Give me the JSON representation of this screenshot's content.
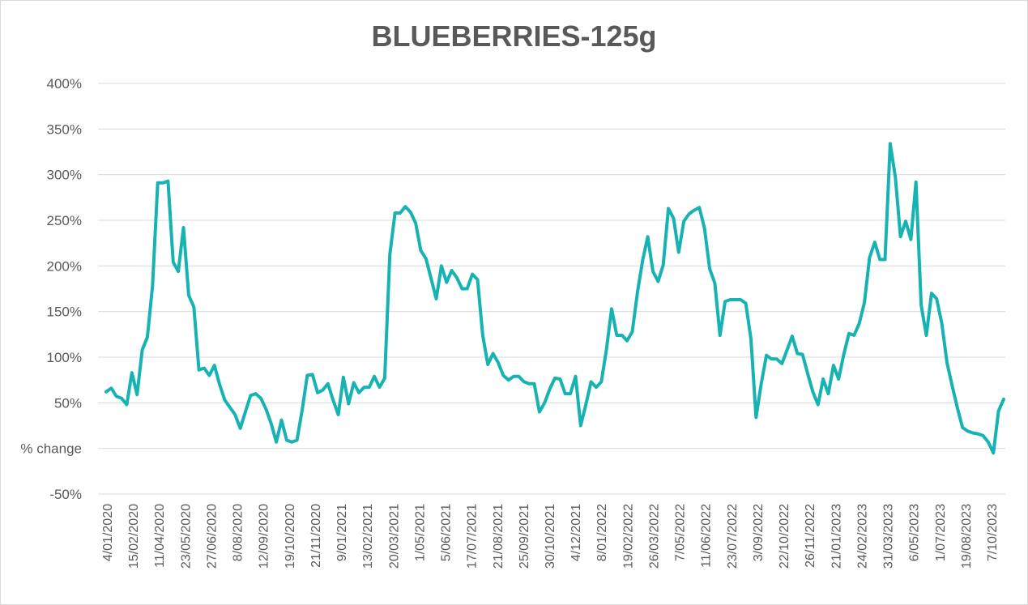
{
  "chart_data": {
    "type": "line",
    "title": "BLUEBERRIES-125g",
    "xlabel": "",
    "ylabel": "",
    "y_tick_labels": [
      "-50%",
      "% change",
      "50%",
      "100%",
      "150%",
      "200%",
      "250%",
      "300%",
      "350%",
      "400%"
    ],
    "y_tick_values": [
      -50,
      0,
      50,
      100,
      150,
      200,
      250,
      300,
      350,
      400
    ],
    "ylim": [
      -50,
      400
    ],
    "grid": true,
    "legend": "none",
    "line_color": "#17b3b3",
    "x_tick_labels": [
      "4/01/2020",
      "15/02/2020",
      "11/04/2020",
      "23/05/2020",
      "27/06/2020",
      "8/08/2020",
      "12/09/2020",
      "19/10/2020",
      "21/11/2020",
      "9/01/2021",
      "13/02/2021",
      "20/03/2021",
      "1/05/2021",
      "5/06/2021",
      "17/07/2021",
      "21/08/2021",
      "25/09/2021",
      "30/10/2021",
      "4/12/2021",
      "8/01/2022",
      "19/02/2022",
      "26/03/2022",
      "7/05/2022",
      "11/06/2022",
      "23/07/2022",
      "3/09/2022",
      "22/10/2022",
      "26/11/2022",
      "21/01/2023",
      "24/02/2023",
      "31/03/2023",
      "6/05/2023",
      "1/07/2023",
      "19/08/2023",
      "7/10/2023"
    ],
    "values": [
      62,
      66,
      57,
      55,
      48,
      83,
      59,
      108,
      122,
      178,
      291,
      291,
      293,
      204,
      194,
      242,
      168,
      155,
      86,
      88,
      80,
      91,
      70,
      53,
      45,
      37,
      22,
      40,
      58,
      60,
      55,
      43,
      27,
      7,
      31,
      9,
      7,
      9,
      42,
      80,
      81,
      61,
      64,
      71,
      53,
      37,
      78,
      49,
      72,
      61,
      67,
      67,
      79,
      67,
      77,
      212,
      258,
      258,
      265,
      259,
      247,
      217,
      208,
      186,
      164,
      200,
      182,
      195,
      187,
      175,
      175,
      191,
      185,
      124,
      92,
      104,
      94,
      80,
      75,
      79,
      79,
      73,
      71,
      71,
      40,
      50,
      65,
      77,
      76,
      60,
      60,
      79,
      25,
      48,
      73,
      67,
      73,
      109,
      153,
      124,
      124,
      118,
      128,
      171,
      206,
      232,
      194,
      183,
      201,
      263,
      252,
      215,
      249,
      257,
      261,
      264,
      241,
      197,
      181,
      124,
      161,
      163,
      163,
      163,
      159,
      120,
      34,
      71,
      102,
      98,
      98,
      93,
      108,
      123,
      104,
      103,
      82,
      62,
      48,
      76,
      60,
      91,
      76,
      103,
      126,
      124,
      137,
      160,
      209,
      226,
      207,
      207,
      334,
      297,
      232,
      249,
      229,
      292,
      157,
      124,
      170,
      164,
      137,
      94,
      69,
      45,
      23,
      19,
      17,
      16,
      14,
      7,
      -5,
      41,
      54
    ]
  }
}
